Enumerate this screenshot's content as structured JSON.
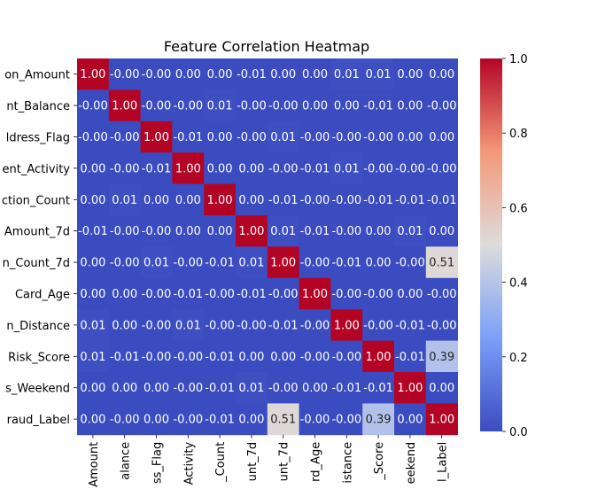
{
  "chart_data": {
    "type": "heatmap",
    "title": "Feature Correlation Heatmap",
    "row_labels": [
      "on_Amount",
      "nt_Balance",
      "ldress_Flag",
      "ent_Activity",
      "ction_Count",
      "Amount_7d",
      "n_Count_7d",
      "Card_Age",
      "n_Distance",
      "Risk_Score",
      "s_Weekend",
      "raud_Label"
    ],
    "col_labels": [
      "Amount",
      "alance",
      "ss_Flag",
      "Activity",
      "_Count",
      "unt_7d",
      "unt_7d",
      "rd_Age",
      "istance",
      "_Score",
      "eekend",
      "l_Label"
    ],
    "values": [
      [
        "1.00",
        "-0.00",
        "-0.00",
        "0.00",
        "0.00",
        "-0.01",
        "0.00",
        "0.00",
        "0.01",
        "0.01",
        "0.00",
        "0.00"
      ],
      [
        "-0.00",
        "1.00",
        "-0.00",
        "-0.00",
        "0.01",
        "-0.00",
        "-0.00",
        "0.00",
        "0.00",
        "-0.01",
        "0.00",
        "-0.00"
      ],
      [
        "-0.00",
        "-0.00",
        "1.00",
        "-0.01",
        "0.00",
        "-0.00",
        "0.01",
        "-0.00",
        "-0.00",
        "-0.00",
        "0.00",
        "0.00"
      ],
      [
        "0.00",
        "-0.00",
        "-0.01",
        "1.00",
        "0.00",
        "0.00",
        "-0.00",
        "-0.01",
        "0.01",
        "-0.00",
        "-0.00",
        "-0.00"
      ],
      [
        "0.00",
        "0.01",
        "0.00",
        "0.00",
        "1.00",
        "0.00",
        "-0.01",
        "-0.00",
        "-0.00",
        "-0.01",
        "-0.01",
        "-0.01"
      ],
      [
        "-0.01",
        "-0.00",
        "-0.00",
        "0.00",
        "0.00",
        "1.00",
        "0.01",
        "-0.01",
        "-0.00",
        "0.00",
        "0.01",
        "0.00"
      ],
      [
        "0.00",
        "-0.00",
        "0.01",
        "-0.00",
        "-0.01",
        "0.01",
        "1.00",
        "-0.00",
        "-0.01",
        "0.00",
        "-0.00",
        "0.51"
      ],
      [
        "0.00",
        "0.00",
        "-0.00",
        "-0.01",
        "-0.00",
        "-0.01",
        "-0.00",
        "1.00",
        "-0.00",
        "-0.00",
        "0.00",
        "-0.00"
      ],
      [
        "0.01",
        "0.00",
        "-0.00",
        "0.01",
        "-0.00",
        "-0.00",
        "-0.01",
        "-0.00",
        "1.00",
        "-0.00",
        "-0.01",
        "-0.00"
      ],
      [
        "0.01",
        "-0.01",
        "-0.00",
        "-0.00",
        "-0.01",
        "0.00",
        "0.00",
        "-0.00",
        "-0.00",
        "1.00",
        "-0.01",
        "0.39"
      ],
      [
        "0.00",
        "0.00",
        "0.00",
        "-0.00",
        "-0.01",
        "0.01",
        "-0.00",
        "0.00",
        "-0.01",
        "-0.01",
        "1.00",
        "0.00"
      ],
      [
        "0.00",
        "-0.00",
        "0.00",
        "-0.00",
        "-0.01",
        "0.00",
        "0.51",
        "-0.00",
        "-0.00",
        "0.39",
        "0.00",
        "1.00"
      ]
    ],
    "colorbar": {
      "range": [
        0.0,
        1.0
      ],
      "ticks": [
        "0.0",
        "0.2",
        "0.4",
        "0.6",
        "0.8",
        "1.0"
      ],
      "colormap": "coolwarm",
      "low_color": "#3b4cc0",
      "high_color": "#b40426"
    }
  }
}
